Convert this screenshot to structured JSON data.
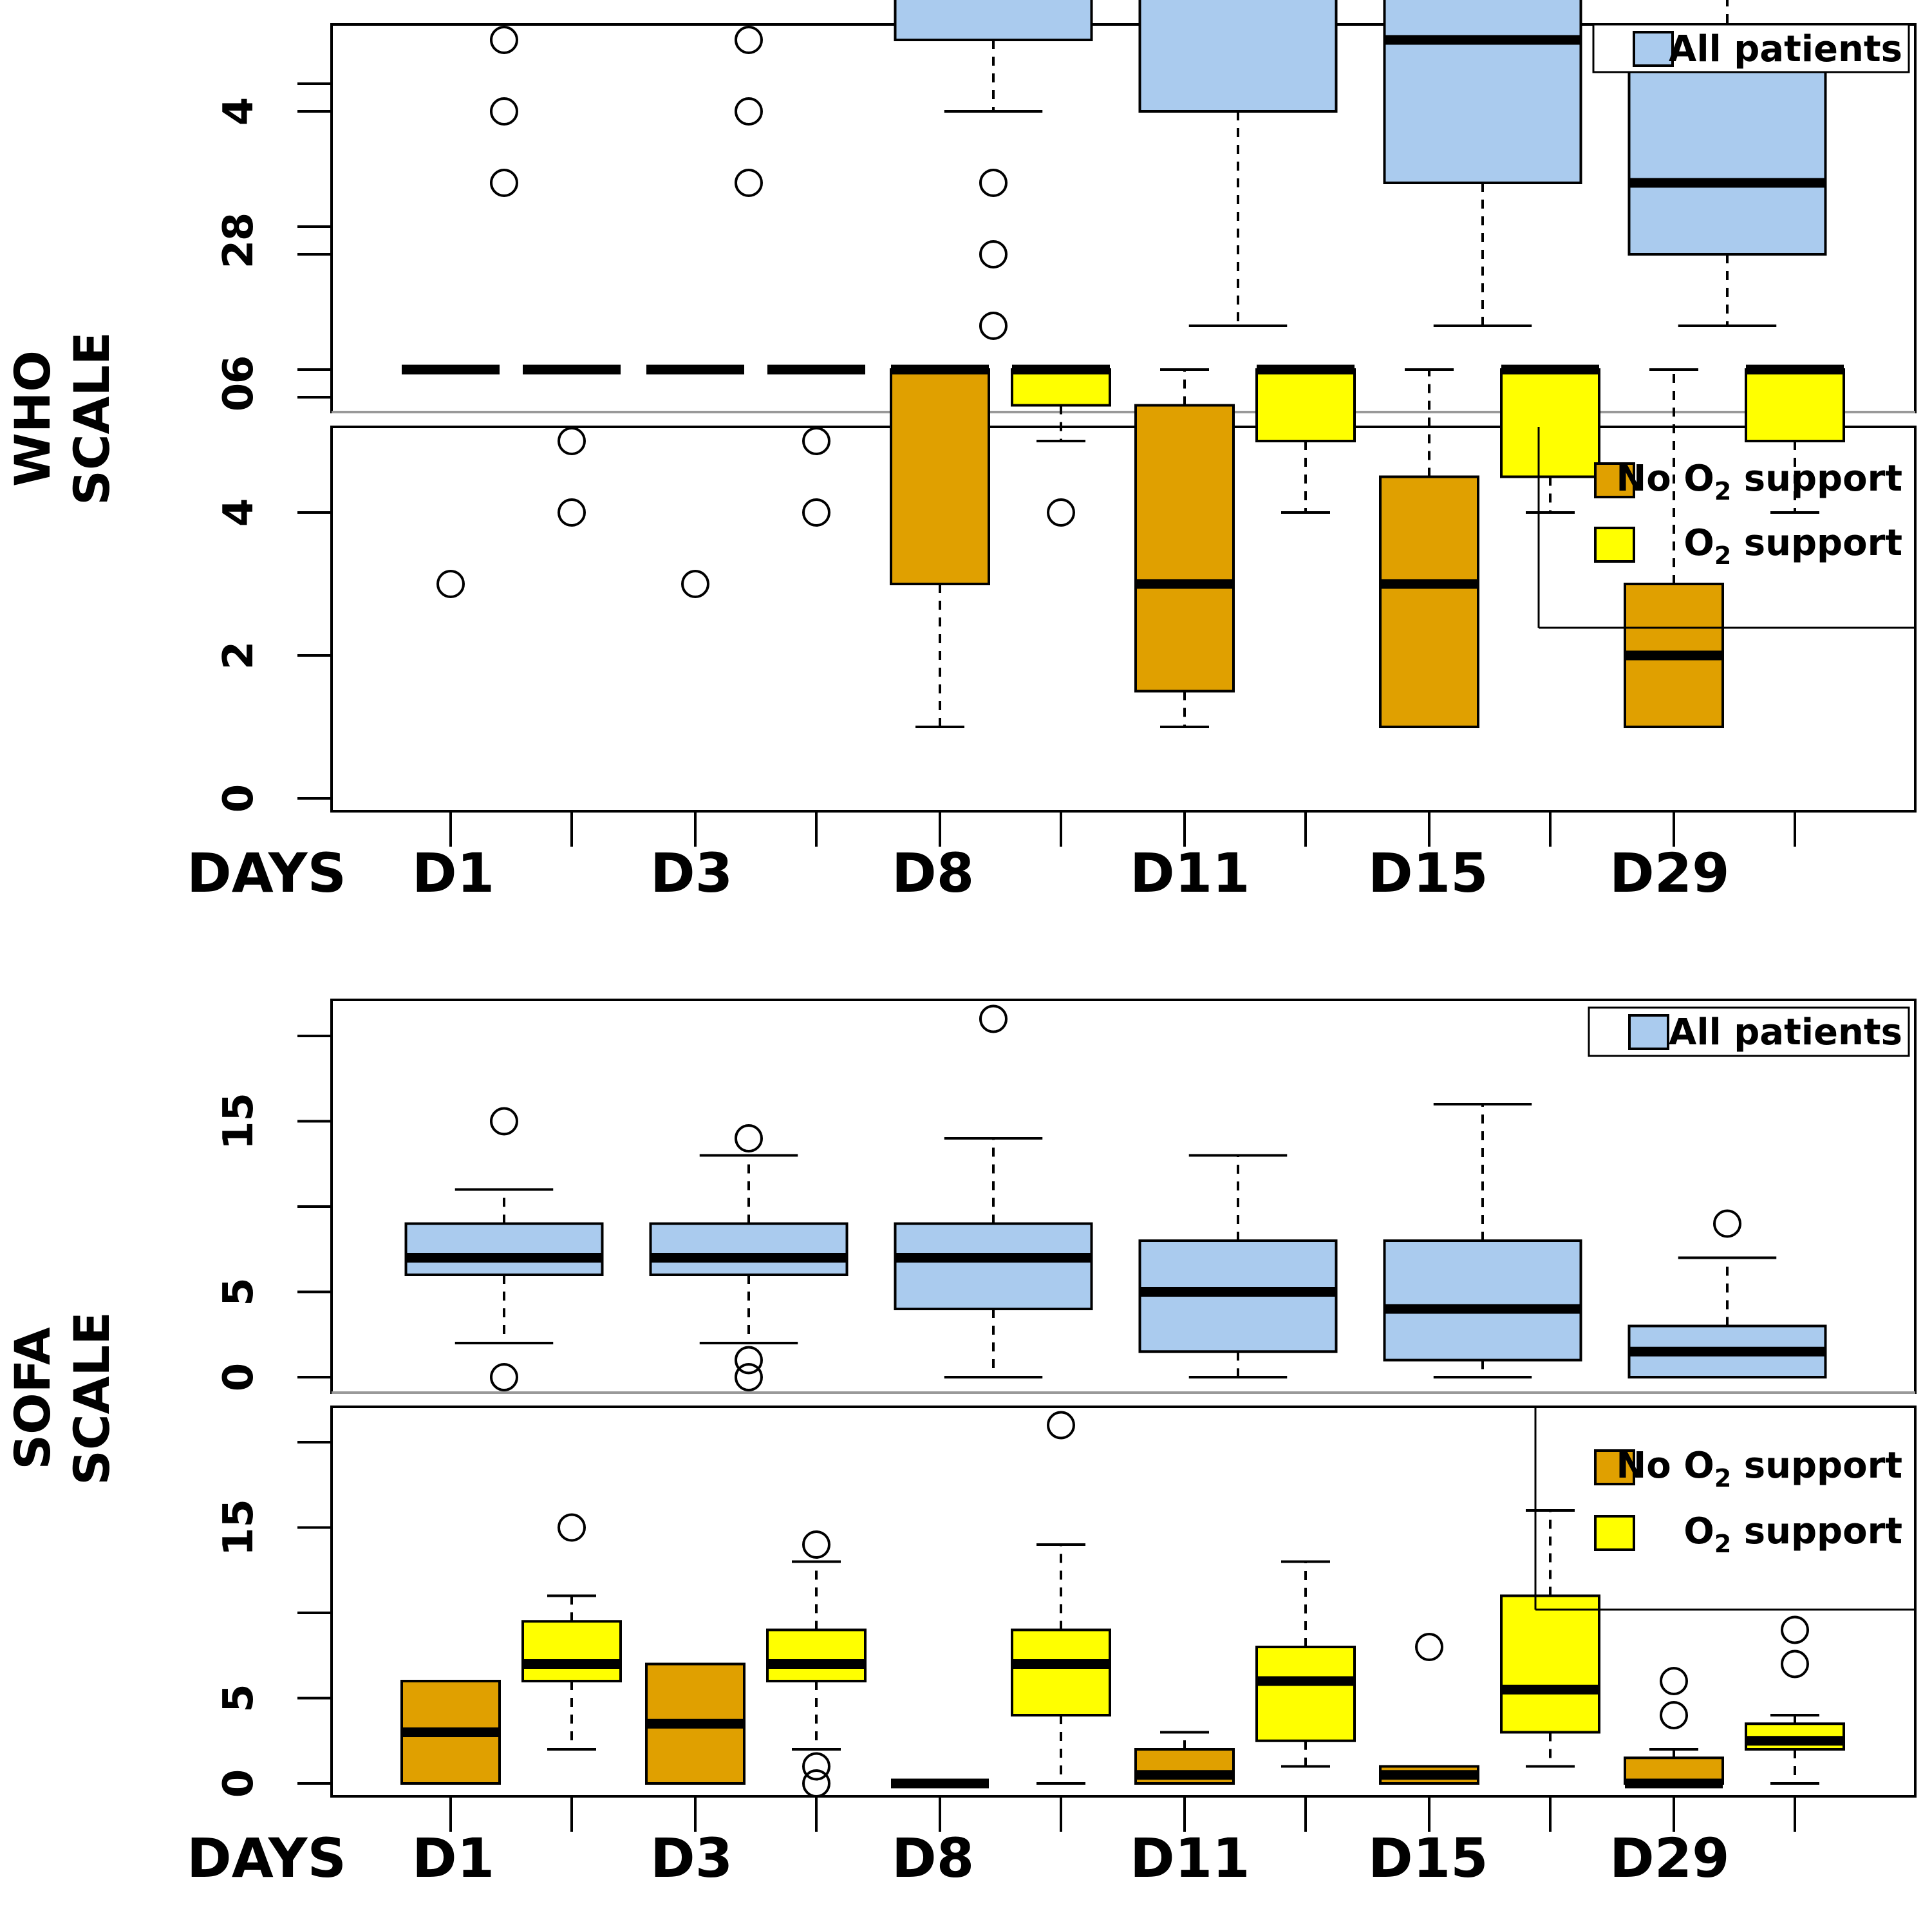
{
  "days_label": "DAYS",
  "legend": {
    "all": "All patients",
    "no_o2_prefix": "No O",
    "no_o2_sub": "2",
    "no_o2_suffix": " support",
    "o2_prefix": "O",
    "o2_sub": "2",
    "o2_suffix": " support"
  },
  "colors": {
    "all": "#aacbee",
    "no_o2": "#e0a000",
    "o2": "#ffff00"
  },
  "chart_data": [
    {
      "type": "boxplot",
      "group": "WHO",
      "ylabel": [
        "WHO",
        "SCALE"
      ],
      "yticks": [
        0,
        2,
        4,
        6,
        8
      ],
      "ylim": [
        -0.4,
        10.3
      ],
      "categories": [
        "D1",
        "D3",
        "D8",
        "D11",
        "D15",
        "D29"
      ],
      "legend_position": "top-right",
      "all_patients": [
        {
          "day": "D1",
          "min": 6,
          "q1": 6,
          "median": 6,
          "q3": 6,
          "max": 6,
          "outliers": [
            5,
            4,
            3
          ]
        },
        {
          "day": "D3",
          "min": 6,
          "q1": 6,
          "median": 6,
          "q3": 6,
          "max": 6,
          "outliers": [
            5,
            4,
            3
          ]
        },
        {
          "day": "D8",
          "min": 4,
          "q1": 5,
          "median": 6,
          "q3": 6,
          "max": 7,
          "outliers": [
            3,
            2,
            1
          ]
        },
        {
          "day": "D11",
          "min": 1,
          "q1": 4,
          "median": 6,
          "q3": 6,
          "max": 6,
          "outliers": []
        },
        {
          "day": "D15",
          "min": 1,
          "q1": 3,
          "median": 5,
          "q3": 6,
          "max": 6,
          "outliers": []
        },
        {
          "day": "D29",
          "min": 1,
          "q1": 2,
          "median": 3,
          "q3": 5,
          "max": 6,
          "outliers": []
        }
      ],
      "by_support": [
        {
          "day": "D1",
          "no_o2": {
            "min": 6,
            "q1": 6,
            "median": 6,
            "q3": 6,
            "max": 6,
            "outliers": [
              3
            ]
          },
          "o2": {
            "min": 6,
            "q1": 6,
            "median": 6,
            "q3": 6,
            "max": 6,
            "outliers": [
              5,
              4
            ]
          }
        },
        {
          "day": "D3",
          "no_o2": {
            "min": 6,
            "q1": 6,
            "median": 6,
            "q3": 6,
            "max": 6,
            "outliers": [
              3
            ]
          },
          "o2": {
            "min": 6,
            "q1": 6,
            "median": 6,
            "q3": 6,
            "max": 6,
            "outliers": [
              5,
              4
            ]
          }
        },
        {
          "day": "D8",
          "no_o2": {
            "min": 1,
            "q1": 3,
            "median": 6,
            "q3": 6,
            "max": 6,
            "outliers": []
          },
          "o2": {
            "min": 5,
            "q1": 5.5,
            "median": 6,
            "q3": 6,
            "max": 6,
            "outliers": [
              4
            ]
          }
        },
        {
          "day": "D11",
          "no_o2": {
            "min": 1,
            "q1": 1.5,
            "median": 3,
            "q3": 5.5,
            "max": 6,
            "outliers": []
          },
          "o2": {
            "min": 4,
            "q1": 5,
            "median": 6,
            "q3": 6,
            "max": 6,
            "outliers": []
          }
        },
        {
          "day": "D15",
          "no_o2": {
            "min": 1,
            "q1": 1,
            "median": 3,
            "q3": 4.5,
            "max": 6,
            "outliers": []
          },
          "o2": {
            "min": 4,
            "q1": 4.5,
            "median": 6,
            "q3": 6,
            "max": 6,
            "outliers": []
          }
        },
        {
          "day": "D29",
          "no_o2": {
            "min": 1,
            "q1": 1,
            "median": 2,
            "q3": 3,
            "max": 6,
            "outliers": []
          },
          "o2": {
            "min": 4,
            "q1": 5,
            "median": 6,
            "q3": 6,
            "max": 6,
            "outliers": []
          }
        }
      ]
    },
    {
      "type": "boxplot",
      "group": "SOFA",
      "ylabel": [
        "SOFA",
        "SCALE"
      ],
      "yticks": [
        0,
        5,
        15
      ],
      "ylim": [
        -0.8,
        22
      ],
      "categories": [
        "D1",
        "D3",
        "D8",
        "D11",
        "D15",
        "D29"
      ],
      "legend_position": "top-right",
      "all_patients": [
        {
          "day": "D1",
          "min": 2,
          "q1": 6,
          "median": 7,
          "q3": 9,
          "max": 11,
          "outliers": [
            15,
            0
          ]
        },
        {
          "day": "D3",
          "min": 2,
          "q1": 6,
          "median": 7,
          "q3": 9,
          "max": 13,
          "outliers": [
            14,
            1,
            0
          ]
        },
        {
          "day": "D8",
          "min": 0,
          "q1": 4,
          "median": 7,
          "q3": 9,
          "max": 14,
          "outliers": [
            21
          ]
        },
        {
          "day": "D11",
          "min": 0,
          "q1": 1.5,
          "median": 5,
          "q3": 8,
          "max": 13,
          "outliers": []
        },
        {
          "day": "D15",
          "min": 0,
          "q1": 1,
          "median": 4,
          "q3": 8,
          "max": 16,
          "outliers": []
        },
        {
          "day": "D29",
          "min": 0,
          "q1": 0,
          "median": 1.5,
          "q3": 3,
          "max": 7,
          "outliers": [
            9
          ]
        }
      ],
      "by_support": [
        {
          "day": "D1",
          "no_o2": {
            "min": 0,
            "q1": 0,
            "median": 3,
            "q3": 6,
            "max": 6,
            "outliers": []
          },
          "o2": {
            "min": 2,
            "q1": 6,
            "median": 7,
            "q3": 9.5,
            "max": 11,
            "outliers": [
              15
            ]
          }
        },
        {
          "day": "D3",
          "no_o2": {
            "min": 0,
            "q1": 0,
            "median": 3.5,
            "q3": 7,
            "max": 7,
            "outliers": []
          },
          "o2": {
            "min": 2,
            "q1": 6,
            "median": 7,
            "q3": 9,
            "max": 13,
            "outliers": [
              14,
              1,
              0
            ]
          }
        },
        {
          "day": "D8",
          "no_o2": {
            "min": 0,
            "q1": 0,
            "median": 0,
            "q3": 0,
            "max": 0,
            "outliers": []
          },
          "o2": {
            "min": 0,
            "q1": 4,
            "median": 7,
            "q3": 9,
            "max": 14,
            "outliers": [
              21
            ]
          }
        },
        {
          "day": "D11",
          "no_o2": {
            "min": 0,
            "q1": 0,
            "median": 0.5,
            "q3": 2,
            "max": 3,
            "outliers": []
          },
          "o2": {
            "min": 1,
            "q1": 2.5,
            "median": 6,
            "q3": 8,
            "max": 13,
            "outliers": []
          }
        },
        {
          "day": "D15",
          "no_o2": {
            "min": 0,
            "q1": 0,
            "median": 0.5,
            "q3": 1,
            "max": 1,
            "outliers": [
              8
            ]
          },
          "o2": {
            "min": 1,
            "q1": 3,
            "median": 5.5,
            "q3": 11,
            "max": 16,
            "outliers": []
          }
        },
        {
          "day": "D29",
          "no_o2": {
            "min": 0,
            "q1": 0,
            "median": 0,
            "q3": 1.5,
            "max": 2,
            "outliers": [
              6,
              4
            ]
          },
          "o2": {
            "min": 0,
            "q1": 2,
            "median": 2.5,
            "q3": 3.5,
            "max": 4,
            "outliers": [
              9,
              7
            ]
          }
        }
      ]
    }
  ]
}
